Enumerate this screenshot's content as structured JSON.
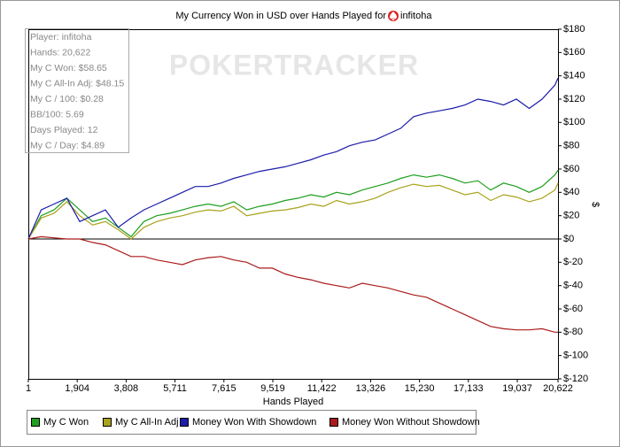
{
  "chart_data": {
    "type": "line",
    "title": "My Currency Won in USD over Hands Played for",
    "player": "infitoha",
    "watermark": "POKERTRACKER",
    "x_label": "Hands Played",
    "y_label": "$",
    "info_box": [
      "Player: infitoha",
      "Hands: 20,622",
      "My C Won: $58.65",
      "My C All-In Adj: $48.15",
      "My C / 100: $0.28",
      "BB/100: 5.69",
      "Days Played: 12",
      "My C / Day: $4.89"
    ],
    "xlim": [
      1,
      20622
    ],
    "xticks": [
      1,
      {
        "value": 1904,
        "label": "1,904"
      },
      {
        "value": 3808,
        "label": "3,808"
      },
      {
        "value": 5711,
        "label": "5,711"
      },
      {
        "value": 7615,
        "label": "7,615"
      },
      {
        "value": 9519,
        "label": "9,519"
      },
      {
        "value": 11422,
        "label": "11,422"
      },
      {
        "value": 13326,
        "label": "13,326"
      },
      {
        "value": 15230,
        "label": "15,230"
      },
      {
        "value": 17133,
        "label": "17,133"
      },
      {
        "value": 19037,
        "label": "19,037"
      },
      {
        "value": 20622,
        "label": "20,622"
      }
    ],
    "ylim": [
      -120,
      180
    ],
    "yticks": [
      {
        "value": 180,
        "label": "$180"
      },
      {
        "value": 160,
        "label": "$160"
      },
      {
        "value": 140,
        "label": "$140"
      },
      {
        "value": 120,
        "label": "$120"
      },
      {
        "value": 100,
        "label": "$100"
      },
      {
        "value": 80,
        "label": "$80"
      },
      {
        "value": 60,
        "label": "$60"
      },
      {
        "value": 40,
        "label": "$40"
      },
      {
        "value": 20,
        "label": "$20"
      },
      {
        "value": 0,
        "label": "$0"
      },
      {
        "value": -20,
        "label": "$-20"
      },
      {
        "value": -40,
        "label": "$-40"
      },
      {
        "value": -60,
        "label": "$-60"
      },
      {
        "value": -80,
        "label": "$-80"
      },
      {
        "value": -100,
        "label": "$-100"
      },
      {
        "value": -120,
        "label": "$-120"
      }
    ],
    "x": [
      1,
      500,
      1000,
      1500,
      2000,
      2500,
      3000,
      3500,
      4000,
      4500,
      5000,
      5500,
      6000,
      6500,
      7000,
      7500,
      8000,
      8500,
      9000,
      9500,
      10000,
      10500,
      11000,
      11500,
      12000,
      12500,
      13000,
      13500,
      14000,
      14500,
      15000,
      15500,
      16000,
      16500,
      17000,
      17500,
      18000,
      18500,
      19000,
      19500,
      20000,
      20500,
      20622
    ],
    "series": [
      {
        "name": "My C Won",
        "color": "#1f9e1f",
        "values": [
          0,
          20,
          25,
          35,
          25,
          15,
          18,
          10,
          2,
          15,
          20,
          22,
          25,
          28,
          30,
          28,
          32,
          25,
          28,
          30,
          33,
          35,
          38,
          36,
          40,
          38,
          42,
          45,
          48,
          52,
          55,
          53,
          55,
          52,
          48,
          50,
          42,
          48,
          45,
          40,
          45,
          55,
          59
        ]
      },
      {
        "name": "My C All-In Adj",
        "color": "#a9a21c",
        "values": [
          0,
          18,
          22,
          32,
          20,
          12,
          15,
          8,
          0,
          10,
          15,
          18,
          20,
          23,
          25,
          24,
          28,
          20,
          22,
          24,
          25,
          27,
          30,
          28,
          33,
          30,
          32,
          35,
          40,
          44,
          47,
          45,
          46,
          42,
          38,
          40,
          33,
          38,
          36,
          32,
          35,
          42,
          48
        ]
      },
      {
        "name": "Money Won With Showdown",
        "color": "#1c1caa",
        "values": [
          0,
          25,
          30,
          35,
          15,
          20,
          25,
          10,
          18,
          25,
          30,
          35,
          40,
          45,
          45,
          48,
          52,
          55,
          58,
          60,
          62,
          65,
          68,
          72,
          75,
          80,
          83,
          85,
          90,
          95,
          105,
          108,
          110,
          112,
          115,
          120,
          118,
          115,
          120,
          112,
          120,
          132,
          138
        ]
      },
      {
        "name": "Money Won Without Showdown",
        "color": "#aa1c1c",
        "values": [
          0,
          2,
          1,
          0,
          0,
          -3,
          -5,
          -10,
          -15,
          -15,
          -18,
          -20,
          -22,
          -18,
          -16,
          -15,
          -18,
          -20,
          -25,
          -25,
          -30,
          -33,
          -35,
          -38,
          -40,
          -42,
          -38,
          -40,
          -42,
          -45,
          -48,
          -50,
          -55,
          -60,
          -65,
          -70,
          -75,
          -77,
          -78,
          -78,
          -77,
          -80,
          -80
        ]
      }
    ]
  }
}
